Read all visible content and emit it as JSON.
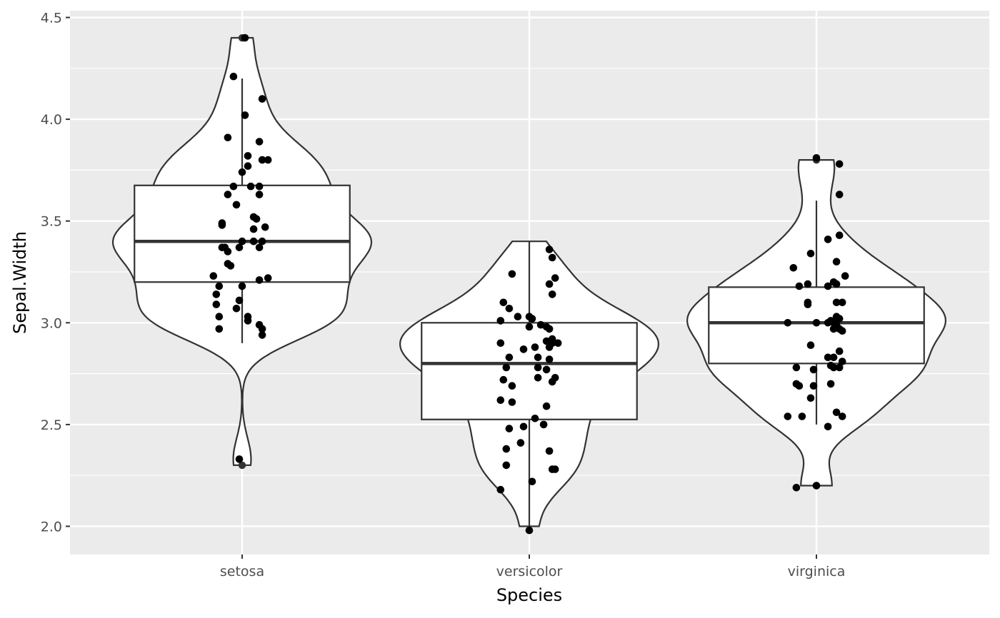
{
  "chart_data": {
    "type": "violin",
    "xlabel": "Species",
    "ylabel": "Sepal.Width",
    "ylim": [
      1.95,
      4.52
    ],
    "y_ticks": [
      2.0,
      2.5,
      3.0,
      3.5,
      4.0,
      4.5
    ],
    "y_tick_labels": [
      "2.0",
      "2.5",
      "3.0",
      "3.5",
      "4.0",
      "4.5"
    ],
    "grid": true,
    "legend": "none",
    "colors": {
      "panel": "#ebebeb",
      "grid": "#ffffff",
      "outline": "#333333",
      "points": "#000000"
    },
    "categories": [
      {
        "name": "setosa",
        "boxplot": {
          "min": 2.9,
          "q1": 3.2,
          "median": 3.4,
          "q3": 3.675,
          "max": 4.2,
          "outliers": [
            2.3,
            4.4
          ]
        },
        "violin_range": [
          2.3,
          4.4
        ],
        "points": [
          [
            -0.03,
            4.21
          ],
          [
            0.07,
            4.1
          ],
          [
            0.01,
            4.02
          ],
          [
            0.06,
            3.89
          ],
          [
            0.02,
            3.82
          ],
          [
            0.09,
            3.8
          ],
          [
            0.07,
            3.8
          ],
          [
            0.02,
            3.77
          ],
          [
            0.0,
            3.74
          ],
          [
            0.03,
            3.67
          ],
          [
            0.06,
            3.67
          ],
          [
            -0.05,
            3.63
          ],
          [
            0.06,
            3.63
          ],
          [
            -0.03,
            3.67
          ],
          [
            -0.02,
            3.58
          ],
          [
            0.04,
            3.52
          ],
          [
            0.05,
            3.51
          ],
          [
            0.08,
            3.47
          ],
          [
            -0.07,
            3.49
          ],
          [
            -0.07,
            3.48
          ],
          [
            0.04,
            3.46
          ],
          [
            0.0,
            3.4
          ],
          [
            0.04,
            3.4
          ],
          [
            0.07,
            3.4
          ],
          [
            0.06,
            3.37
          ],
          [
            -0.07,
            3.37
          ],
          [
            -0.06,
            3.37
          ],
          [
            -0.01,
            3.37
          ],
          [
            -0.05,
            3.35
          ],
          [
            -0.05,
            3.29
          ],
          [
            -0.04,
            3.28
          ],
          [
            0.06,
            3.21
          ],
          [
            0.09,
            3.22
          ],
          [
            -0.1,
            3.23
          ],
          [
            -0.08,
            3.18
          ],
          [
            0.0,
            3.18
          ],
          [
            -0.09,
            3.14
          ],
          [
            -0.01,
            3.11
          ],
          [
            -0.02,
            3.07
          ],
          [
            -0.09,
            3.09
          ],
          [
            -0.08,
            3.03
          ],
          [
            0.02,
            3.03
          ],
          [
            0.02,
            3.01
          ],
          [
            0.06,
            2.99
          ],
          [
            -0.08,
            2.97
          ],
          [
            0.07,
            2.97
          ],
          [
            0.07,
            2.94
          ],
          [
            -0.05,
            3.91
          ],
          [
            0.01,
            4.4
          ],
          [
            -0.01,
            2.33
          ]
        ]
      },
      {
        "name": "versicolor",
        "boxplot": {
          "min": 2.0,
          "q1": 2.525,
          "median": 2.8,
          "q3": 3.0,
          "max": 3.4,
          "outliers": []
        },
        "violin_range": [
          2.0,
          3.4
        ],
        "points": [
          [
            0.07,
            3.36
          ],
          [
            0.08,
            3.32
          ],
          [
            -0.06,
            3.24
          ],
          [
            0.09,
            3.22
          ],
          [
            0.07,
            3.19
          ],
          [
            0.08,
            3.14
          ],
          [
            -0.09,
            3.1
          ],
          [
            -0.07,
            3.07
          ],
          [
            -0.04,
            3.03
          ],
          [
            0.0,
            3.03
          ],
          [
            0.01,
            3.02
          ],
          [
            -0.1,
            3.01
          ],
          [
            0.04,
            2.99
          ],
          [
            0.06,
            2.98
          ],
          [
            0.07,
            2.97
          ],
          [
            0.0,
            2.98
          ],
          [
            0.08,
            2.92
          ],
          [
            0.06,
            2.91
          ],
          [
            0.08,
            2.9
          ],
          [
            0.1,
            2.9
          ],
          [
            -0.1,
            2.9
          ],
          [
            0.07,
            2.88
          ],
          [
            0.02,
            2.88
          ],
          [
            -0.02,
            2.87
          ],
          [
            -0.07,
            2.83
          ],
          [
            0.07,
            2.82
          ],
          [
            0.03,
            2.83
          ],
          [
            -0.08,
            2.78
          ],
          [
            0.03,
            2.78
          ],
          [
            0.06,
            2.77
          ],
          [
            0.03,
            2.73
          ],
          [
            0.09,
            2.73
          ],
          [
            -0.09,
            2.72
          ],
          [
            0.08,
            2.71
          ],
          [
            -0.06,
            2.69
          ],
          [
            -0.1,
            2.62
          ],
          [
            -0.06,
            2.61
          ],
          [
            0.06,
            2.59
          ],
          [
            0.02,
            2.53
          ],
          [
            0.05,
            2.5
          ],
          [
            -0.02,
            2.49
          ],
          [
            -0.07,
            2.48
          ],
          [
            -0.03,
            2.41
          ],
          [
            -0.08,
            2.38
          ],
          [
            0.07,
            2.37
          ],
          [
            0.08,
            2.28
          ],
          [
            0.09,
            2.28
          ],
          [
            -0.08,
            2.3
          ],
          [
            0.01,
            2.22
          ],
          [
            -0.1,
            2.18
          ],
          [
            0.0,
            1.98
          ]
        ]
      },
      {
        "name": "virginica",
        "boxplot": {
          "min": 2.5,
          "q1": 2.8,
          "median": 3.0,
          "q3": 3.175,
          "max": 3.6,
          "outliers": [
            2.2,
            3.8
          ]
        },
        "violin_range": [
          2.2,
          3.8
        ],
        "points": [
          [
            0.0,
            3.81
          ],
          [
            0.08,
            3.78
          ],
          [
            0.08,
            3.63
          ],
          [
            0.08,
            3.43
          ],
          [
            0.04,
            3.41
          ],
          [
            -0.02,
            3.34
          ],
          [
            0.07,
            3.3
          ],
          [
            -0.08,
            3.27
          ],
          [
            0.1,
            3.23
          ],
          [
            0.06,
            3.2
          ],
          [
            0.07,
            3.19
          ],
          [
            -0.03,
            3.19
          ],
          [
            0.04,
            3.18
          ],
          [
            -0.06,
            3.18
          ],
          [
            -0.03,
            3.1
          ],
          [
            0.07,
            3.1
          ],
          [
            0.09,
            3.1
          ],
          [
            -0.03,
            3.09
          ],
          [
            0.07,
            3.03
          ],
          [
            0.08,
            3.02
          ],
          [
            0.05,
            3.01
          ],
          [
            0.04,
            3.0
          ],
          [
            0.06,
            3.0
          ],
          [
            -0.1,
            3.0
          ],
          [
            0.0,
            3.0
          ],
          [
            0.07,
            2.99
          ],
          [
            0.06,
            2.97
          ],
          [
            0.09,
            2.96
          ],
          [
            0.08,
            2.97
          ],
          [
            -0.02,
            2.89
          ],
          [
            0.08,
            2.86
          ],
          [
            0.04,
            2.83
          ],
          [
            0.06,
            2.83
          ],
          [
            0.09,
            2.81
          ],
          [
            0.05,
            2.79
          ],
          [
            0.08,
            2.78
          ],
          [
            -0.07,
            2.78
          ],
          [
            0.06,
            2.78
          ],
          [
            -0.01,
            2.77
          ],
          [
            -0.07,
            2.7
          ],
          [
            0.05,
            2.7
          ],
          [
            -0.06,
            2.69
          ],
          [
            -0.01,
            2.69
          ],
          [
            -0.02,
            2.63
          ],
          [
            0.07,
            2.56
          ],
          [
            -0.1,
            2.54
          ],
          [
            -0.05,
            2.54
          ],
          [
            0.09,
            2.54
          ],
          [
            0.04,
            2.49
          ],
          [
            -0.07,
            2.19
          ],
          [
            0.0,
            2.2
          ]
        ]
      }
    ]
  }
}
